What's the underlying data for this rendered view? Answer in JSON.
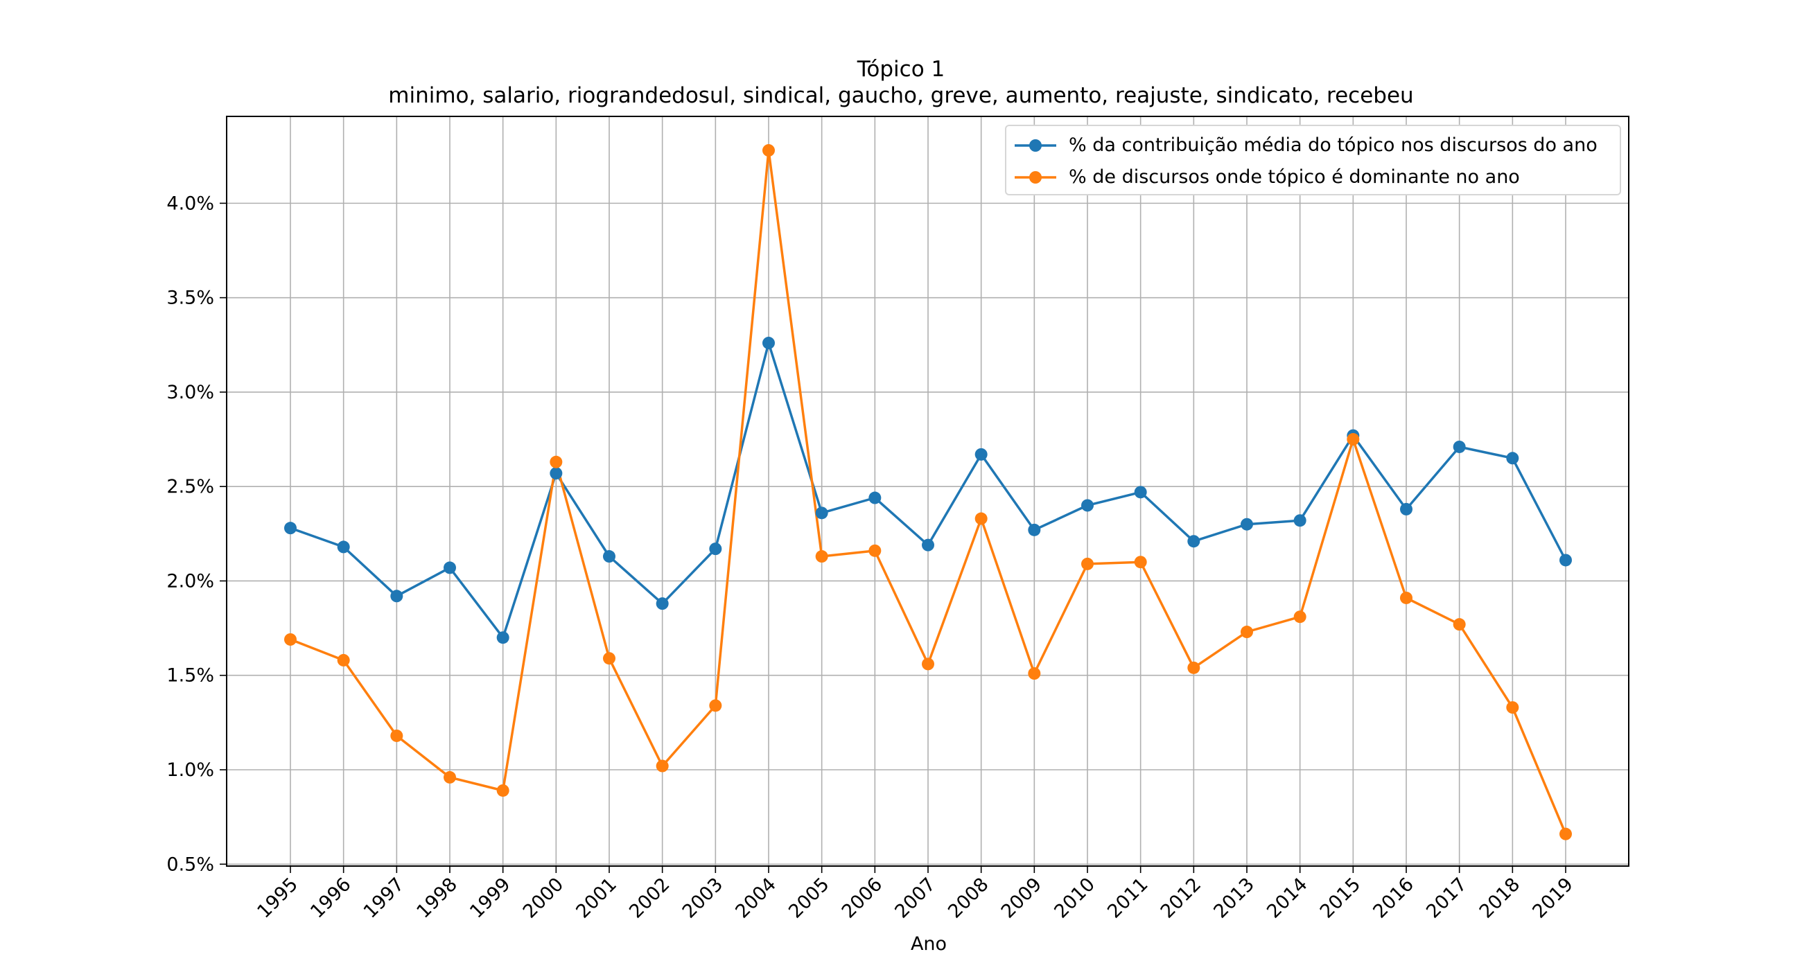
{
  "chart_data": {
    "type": "line",
    "title": "Tópico 1",
    "subtitle": "minimo, salario, riograndedosul, sindical, gaucho, greve, aumento, reajuste, sindicato, recebeu",
    "xlabel": "Ano",
    "ylabel": "",
    "categories": [
      "1995",
      "1996",
      "1997",
      "1998",
      "1999",
      "2000",
      "2001",
      "2002",
      "2003",
      "2004",
      "2005",
      "2006",
      "2007",
      "2008",
      "2009",
      "2010",
      "2011",
      "2012",
      "2013",
      "2014",
      "2015",
      "2016",
      "2017",
      "2018",
      "2019"
    ],
    "yticks": [
      "0.5%",
      "1.0%",
      "1.5%",
      "2.0%",
      "2.5%",
      "3.0%",
      "3.5%",
      "4.0%"
    ],
    "ytick_values": [
      0.5,
      1.0,
      1.5,
      2.0,
      2.5,
      3.0,
      3.5,
      4.0
    ],
    "ylim": [
      0.49,
      4.46
    ],
    "grid": true,
    "legend_position": "top-right",
    "series": [
      {
        "name": "% da contribuição média do tópico nos discursos do ano",
        "color": "#1f77b4",
        "values": [
          2.28,
          2.18,
          1.92,
          2.07,
          1.7,
          2.57,
          2.13,
          1.88,
          2.17,
          3.26,
          2.36,
          2.44,
          2.19,
          2.67,
          2.27,
          2.4,
          2.47,
          2.21,
          2.3,
          2.32,
          2.77,
          2.38,
          2.71,
          2.65,
          2.11
        ]
      },
      {
        "name": "% de discursos onde tópico é dominante no ano",
        "color": "#ff7f0e",
        "values": [
          1.69,
          1.58,
          1.18,
          0.96,
          0.89,
          2.63,
          1.59,
          1.02,
          1.34,
          4.28,
          2.13,
          2.16,
          1.56,
          2.33,
          1.51,
          2.09,
          2.1,
          1.54,
          1.73,
          1.81,
          2.75,
          1.91,
          1.77,
          1.33,
          0.66
        ]
      }
    ]
  }
}
